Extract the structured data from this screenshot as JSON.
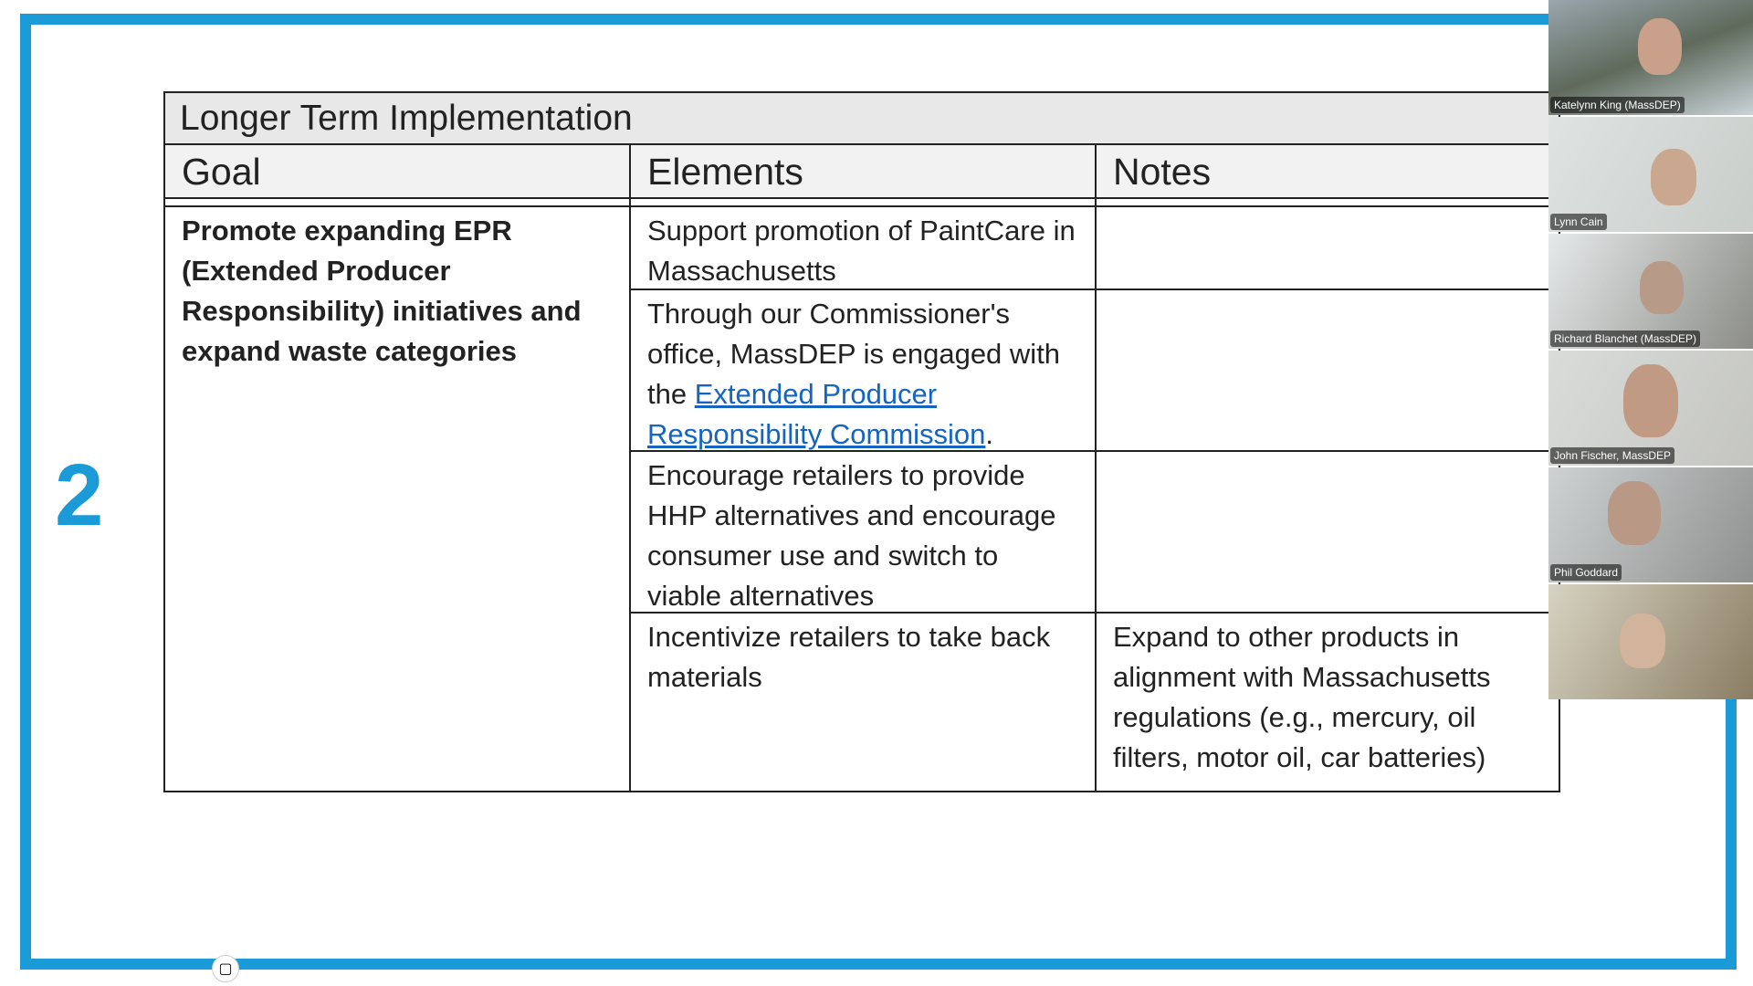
{
  "slide": {
    "number": "2",
    "title": "Longer Term Implementation",
    "headers": [
      "Goal",
      "Elements",
      "Notes"
    ],
    "goal": "Promote expanding EPR (Extended Producer Responsibility) initiatives and expand waste categories",
    "rows": [
      {
        "element": "Support promotion of PaintCare in Massachusetts",
        "notes": ""
      },
      {
        "element_pre": "Through our Commissioner's office, MassDEP is engaged with the ",
        "element_link": "Extended Producer Responsibility Commission",
        "element_post": ".",
        "notes": ""
      },
      {
        "element": "Encourage retailers to provide HHP alternatives and encourage consumer use and switch to viable alternatives",
        "notes": ""
      },
      {
        "element": "Incentivize retailers to take back materials",
        "notes": "Expand to other products in alignment with Massachusetts regulations (e.g., mercury, oil filters, motor oil, car batteries)"
      }
    ],
    "accent": "#1a9bd7"
  },
  "participants": [
    {
      "name": "Katelynn King (MassDEP)"
    },
    {
      "name": "Lynn Cain"
    },
    {
      "name": "Richard Blanchet (MassDEP)"
    },
    {
      "name": "John Fischer, MassDEP"
    },
    {
      "name": "Phil Goddard"
    },
    {
      "name": ""
    }
  ],
  "toolbar": {
    "camera_icon": "video-camera-icon"
  }
}
